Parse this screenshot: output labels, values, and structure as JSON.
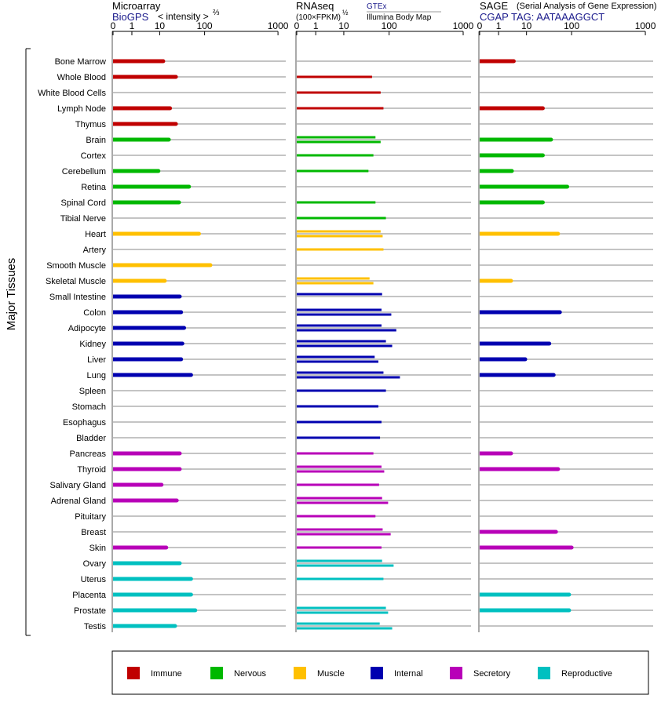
{
  "colors": {
    "immune": "#c00000",
    "nervous": "#00b800",
    "muscle": "#ffc000",
    "internal": "#0000b0",
    "secretory": "#b800b8",
    "reproductive": "#00c0c0",
    "gridline": "#888888",
    "link": "#1a1a8c"
  },
  "side_label": "Major Tissues",
  "tick_labels": [
    "0",
    "1",
    "10",
    "100",
    "1000"
  ],
  "tick_values": [
    0,
    1,
    10,
    100,
    1000
  ],
  "panels": [
    {
      "title": "Microarray",
      "subtitle": "BioGPS",
      "note": "< intensity >",
      "exponent": "⅔"
    },
    {
      "title": "RNAseq",
      "subtitle": "(100×FPKM)",
      "exponent": "½",
      "source_top": "GTEx",
      "source_bottom": "Illumina Body Map"
    },
    {
      "title": "SAGE",
      "note": "(Serial Analysis of Gene Expression)",
      "subtitle": "CGAP TAG: AATAAAGGCT"
    }
  ],
  "legend": [
    {
      "key": "immune",
      "label": "Immune"
    },
    {
      "key": "nervous",
      "label": "Nervous"
    },
    {
      "key": "muscle",
      "label": "Muscle"
    },
    {
      "key": "internal",
      "label": "Internal"
    },
    {
      "key": "secretory",
      "label": "Secretory"
    },
    {
      "key": "reproductive",
      "label": "Reproductive"
    }
  ],
  "chart_data": {
    "type": "bar",
    "orientation": "horizontal",
    "x_scale": "log",
    "xlim": [
      0,
      1000
    ],
    "series": [
      {
        "name": "Microarray"
      },
      {
        "name": "GTEx"
      },
      {
        "name": "Illumina Body Map"
      },
      {
        "name": "SAGE"
      }
    ],
    "tissues": [
      {
        "name": "Bone Marrow",
        "group": "immune",
        "microarray": 12,
        "gtex": null,
        "ibm": null,
        "sage": 3.5
      },
      {
        "name": "Whole Blood",
        "group": "immune",
        "microarray": 23,
        "gtex": null,
        "ibm": 42,
        "sage": null
      },
      {
        "name": "White Blood Cells",
        "group": "immune",
        "microarray": null,
        "gtex": null,
        "ibm": 65,
        "sage": null
      },
      {
        "name": "Lymph Node",
        "group": "immune",
        "microarray": 17,
        "gtex": null,
        "ibm": 75,
        "sage": 23
      },
      {
        "name": "Thymus",
        "group": "immune",
        "microarray": 23,
        "gtex": null,
        "ibm": null,
        "sage": null
      },
      {
        "name": "Brain",
        "group": "nervous",
        "microarray": 16,
        "gtex": 50,
        "ibm": 65,
        "sage": 35
      },
      {
        "name": "Cortex",
        "group": "nervous",
        "microarray": null,
        "gtex": null,
        "ibm": 45,
        "sage": 23
      },
      {
        "name": "Cerebellum",
        "group": "nervous",
        "microarray": 9,
        "gtex": null,
        "ibm": 35,
        "sage": 3
      },
      {
        "name": "Retina",
        "group": "nervous",
        "microarray": 45,
        "gtex": null,
        "ibm": null,
        "sage": 80
      },
      {
        "name": "Spinal Cord",
        "group": "nervous",
        "microarray": 27,
        "gtex": null,
        "ibm": 50,
        "sage": 23
      },
      {
        "name": "Tibial Nerve",
        "group": "nervous",
        "microarray": null,
        "gtex": null,
        "ibm": 85,
        "sage": null
      },
      {
        "name": "Heart",
        "group": "muscle",
        "microarray": 75,
        "gtex": 65,
        "ibm": 72,
        "sage": 50
      },
      {
        "name": "Artery",
        "group": "muscle",
        "microarray": null,
        "gtex": null,
        "ibm": 75,
        "sage": null
      },
      {
        "name": "Smooth Muscle",
        "group": "muscle",
        "microarray": 120,
        "gtex": null,
        "ibm": null,
        "sage": null
      },
      {
        "name": "Skeletal Muscle",
        "group": "muscle",
        "microarray": 13,
        "gtex": 37,
        "ibm": 45,
        "sage": 2.8
      },
      {
        "name": "Small Intestine",
        "group": "internal",
        "microarray": 28,
        "gtex": 70,
        "ibm": null,
        "sage": null
      },
      {
        "name": "Colon",
        "group": "internal",
        "microarray": 30,
        "gtex": 68,
        "ibm": 107,
        "sage": 55
      },
      {
        "name": "Adipocyte",
        "group": "internal",
        "microarray": 35,
        "gtex": 68,
        "ibm": 125,
        "sage": null
      },
      {
        "name": "Kidney",
        "group": "internal",
        "microarray": 32,
        "gtex": 85,
        "ibm": 110,
        "sage": 32
      },
      {
        "name": "Liver",
        "group": "internal",
        "microarray": 30,
        "gtex": 48,
        "ibm": 58,
        "sage": 9
      },
      {
        "name": "Lung",
        "group": "internal",
        "microarray": 50,
        "gtex": 75,
        "ibm": 140,
        "sage": 40
      },
      {
        "name": "Spleen",
        "group": "internal",
        "microarray": null,
        "gtex": null,
        "ibm": 85,
        "sage": null
      },
      {
        "name": "Stomach",
        "group": "internal",
        "microarray": null,
        "gtex": null,
        "ibm": 58,
        "sage": null
      },
      {
        "name": "Esophagus",
        "group": "internal",
        "microarray": null,
        "gtex": null,
        "ibm": 68,
        "sage": null
      },
      {
        "name": "Bladder",
        "group": "internal",
        "microarray": null,
        "gtex": null,
        "ibm": 63,
        "sage": null
      },
      {
        "name": "Pancreas",
        "group": "secretory",
        "microarray": 28,
        "gtex": null,
        "ibm": 45,
        "sage": 2.8
      },
      {
        "name": "Thyroid",
        "group": "secretory",
        "microarray": 28,
        "gtex": 68,
        "ibm": 78,
        "sage": 50
      },
      {
        "name": "Salivary Gland",
        "group": "secretory",
        "microarray": 11,
        "gtex": null,
        "ibm": 60,
        "sage": null
      },
      {
        "name": "Adrenal Gland",
        "group": "secretory",
        "microarray": 24,
        "gtex": 70,
        "ibm": 95,
        "sage": null
      },
      {
        "name": "Pituitary",
        "group": "secretory",
        "microarray": null,
        "gtex": null,
        "ibm": 50,
        "sage": null
      },
      {
        "name": "Breast",
        "group": "secretory",
        "microarray": null,
        "gtex": 72,
        "ibm": 105,
        "sage": 45
      },
      {
        "name": "Skin",
        "group": "secretory",
        "microarray": 14,
        "gtex": null,
        "ibm": 68,
        "sage": 100
      },
      {
        "name": "Ovary",
        "group": "reproductive",
        "microarray": 28,
        "gtex": 70,
        "ibm": 115,
        "sage": null
      },
      {
        "name": "Uterus",
        "group": "reproductive",
        "microarray": 50,
        "gtex": null,
        "ibm": 75,
        "sage": null
      },
      {
        "name": "Placenta",
        "group": "reproductive",
        "microarray": 50,
        "gtex": null,
        "ibm": null,
        "sage": 88
      },
      {
        "name": "Prostate",
        "group": "reproductive",
        "microarray": 62,
        "gtex": 85,
        "ibm": 95,
        "sage": 88
      },
      {
        "name": "Testis",
        "group": "reproductive",
        "microarray": 22,
        "gtex": 62,
        "ibm": 110,
        "sage": null
      }
    ]
  }
}
